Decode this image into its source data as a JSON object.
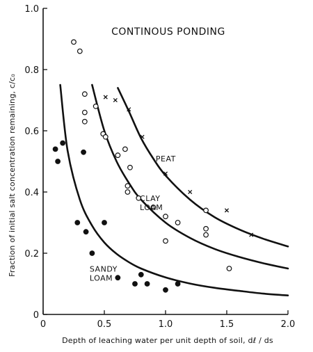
{
  "chart_data": {
    "type": "scatter",
    "title": "CONTINOUS PONDING",
    "xlabel": "Depth of leaching water per unit depth of soil, dℓ / ds",
    "ylabel": "Fraction of initial salt concentration remaining, c/c₀",
    "xlim": [
      0,
      2.0
    ],
    "ylim": [
      0,
      1.0
    ],
    "x_ticks": [
      "0",
      "0.5",
      "1.0",
      "1.5",
      "2.0"
    ],
    "y_ticks": [
      "0",
      "0.2",
      "0.4",
      "0.6",
      "0.8",
      "1.0"
    ],
    "grid": false,
    "legend": "none",
    "series": [
      {
        "name": "PEAT",
        "marker": "x",
        "points": [
          [
            0.51,
            0.71
          ],
          [
            0.59,
            0.7
          ],
          [
            0.7,
            0.67
          ],
          [
            0.81,
            0.58
          ],
          [
            1.0,
            0.46
          ],
          [
            1.2,
            0.4
          ],
          [
            1.5,
            0.34
          ],
          [
            1.7,
            0.26
          ]
        ],
        "curve": [
          [
            0.61,
            0.74
          ],
          [
            0.7,
            0.664
          ],
          [
            0.8,
            0.576
          ],
          [
            0.9,
            0.509
          ],
          [
            1.0,
            0.454
          ],
          [
            1.2,
            0.375
          ],
          [
            1.4,
            0.318
          ],
          [
            1.6,
            0.278
          ],
          [
            1.8,
            0.247
          ],
          [
            2.0,
            0.222
          ]
        ]
      },
      {
        "name": "CLAY LOAM",
        "marker": "open-circle",
        "points": [
          [
            0.25,
            0.89
          ],
          [
            0.3,
            0.86
          ],
          [
            0.34,
            0.72
          ],
          [
            0.34,
            0.66
          ],
          [
            0.34,
            0.63
          ],
          [
            0.43,
            0.68
          ],
          [
            0.49,
            0.59
          ],
          [
            0.51,
            0.58
          ],
          [
            0.61,
            0.52
          ],
          [
            0.67,
            0.54
          ],
          [
            0.69,
            0.42
          ],
          [
            0.69,
            0.4
          ],
          [
            0.71,
            0.48
          ],
          [
            0.78,
            0.38
          ],
          [
            0.9,
            0.35
          ],
          [
            1.0,
            0.32
          ],
          [
            1.1,
            0.3
          ],
          [
            1.33,
            0.34
          ],
          [
            1.33,
            0.28
          ],
          [
            1.33,
            0.26
          ],
          [
            1.0,
            0.24
          ],
          [
            1.52,
            0.15
          ]
        ],
        "curve": [
          [
            0.4,
            0.75
          ],
          [
            0.5,
            0.6
          ],
          [
            0.6,
            0.5
          ],
          [
            0.7,
            0.43
          ],
          [
            0.8,
            0.375
          ],
          [
            1.0,
            0.3
          ],
          [
            1.2,
            0.25
          ],
          [
            1.4,
            0.214
          ],
          [
            1.6,
            0.188
          ],
          [
            1.8,
            0.167
          ],
          [
            2.0,
            0.15
          ]
        ]
      },
      {
        "name": "SANDY LOAM",
        "marker": "filled-circle",
        "points": [
          [
            0.1,
            0.54
          ],
          [
            0.12,
            0.5
          ],
          [
            0.16,
            0.56
          ],
          [
            0.28,
            0.3
          ],
          [
            0.33,
            0.53
          ],
          [
            0.35,
            0.27
          ],
          [
            0.4,
            0.2
          ],
          [
            0.5,
            0.3
          ],
          [
            0.61,
            0.12
          ],
          [
            0.8,
            0.13
          ],
          [
            0.75,
            0.1
          ],
          [
            0.85,
            0.1
          ],
          [
            1.0,
            0.08
          ],
          [
            1.1,
            0.1
          ]
        ],
        "curve": [
          [
            0.14,
            0.75
          ],
          [
            0.2,
            0.535
          ],
          [
            0.3,
            0.375
          ],
          [
            0.4,
            0.29
          ],
          [
            0.5,
            0.235
          ],
          [
            0.6,
            0.198
          ],
          [
            0.7,
            0.171
          ],
          [
            0.8,
            0.15
          ],
          [
            1.0,
            0.121
          ],
          [
            1.2,
            0.101
          ],
          [
            1.4,
            0.087
          ],
          [
            1.6,
            0.077
          ],
          [
            1.8,
            0.068
          ],
          [
            2.0,
            0.062
          ]
        ]
      }
    ],
    "annotations": [
      {
        "lines": [
          "PEAT"
        ],
        "x": 0.92,
        "y": 0.5
      },
      {
        "lines": [
          "CLAY",
          "LOAM"
        ],
        "x": 0.79,
        "y": 0.37
      },
      {
        "lines": [
          "SANDY",
          "LOAM"
        ],
        "x": 0.38,
        "y": 0.14
      }
    ]
  }
}
